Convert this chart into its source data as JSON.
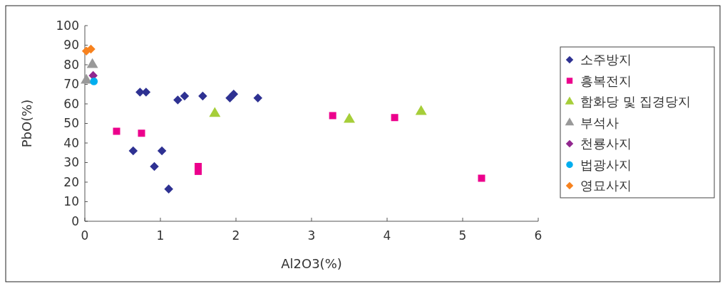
{
  "chart_data": {
    "type": "scatter",
    "xlabel": "Al2O3(%)",
    "ylabel": "PbO(%)",
    "xlim": [
      0,
      6
    ],
    "ylim": [
      0,
      100
    ],
    "xticks": [
      0,
      1,
      2,
      3,
      4,
      5,
      6
    ],
    "yticks": [
      0,
      10,
      20,
      30,
      40,
      50,
      60,
      70,
      80,
      90,
      100
    ],
    "grid": false,
    "legend": "right",
    "series": [
      {
        "name": "소주방지",
        "color": "#2e3192",
        "marker": "diamond",
        "x": [
          0.73,
          0.81,
          1.23,
          1.32,
          1.56,
          1.92,
          1.97,
          2.29,
          0.64,
          1.02,
          0.92,
          1.11
        ],
        "values": [
          66,
          66,
          62,
          64,
          64,
          63,
          65,
          63,
          36,
          36,
          28,
          16.5
        ]
      },
      {
        "name": "흥복전지",
        "color": "#ec008c",
        "marker": "square",
        "x": [
          0.42,
          0.75,
          1.5,
          1.5,
          3.28,
          4.1,
          5.25
        ],
        "values": [
          46,
          45,
          28,
          25.5,
          54,
          53,
          22
        ]
      },
      {
        "name": "함화당 및 집경당지",
        "color": "#a6ce39",
        "marker": "triangle",
        "x": [
          1.72,
          3.5,
          4.45
        ],
        "values": [
          55,
          52,
          56
        ]
      },
      {
        "name": "부석사",
        "color": "#999999",
        "marker": "triangle",
        "x": [
          0.02,
          0.1
        ],
        "values": [
          72,
          80
        ]
      },
      {
        "name": "천룡사지",
        "color": "#92278f",
        "marker": "diamond",
        "x": [
          0.11
        ],
        "values": [
          74.5
        ]
      },
      {
        "name": "법광사지",
        "color": "#00aeef",
        "marker": "circle",
        "x": [
          0.12
        ],
        "values": [
          71.5
        ]
      },
      {
        "name": "영묘사지",
        "color": "#f7821e",
        "marker": "diamond",
        "x": [
          0.02,
          0.08
        ],
        "values": [
          87,
          88
        ]
      }
    ]
  }
}
